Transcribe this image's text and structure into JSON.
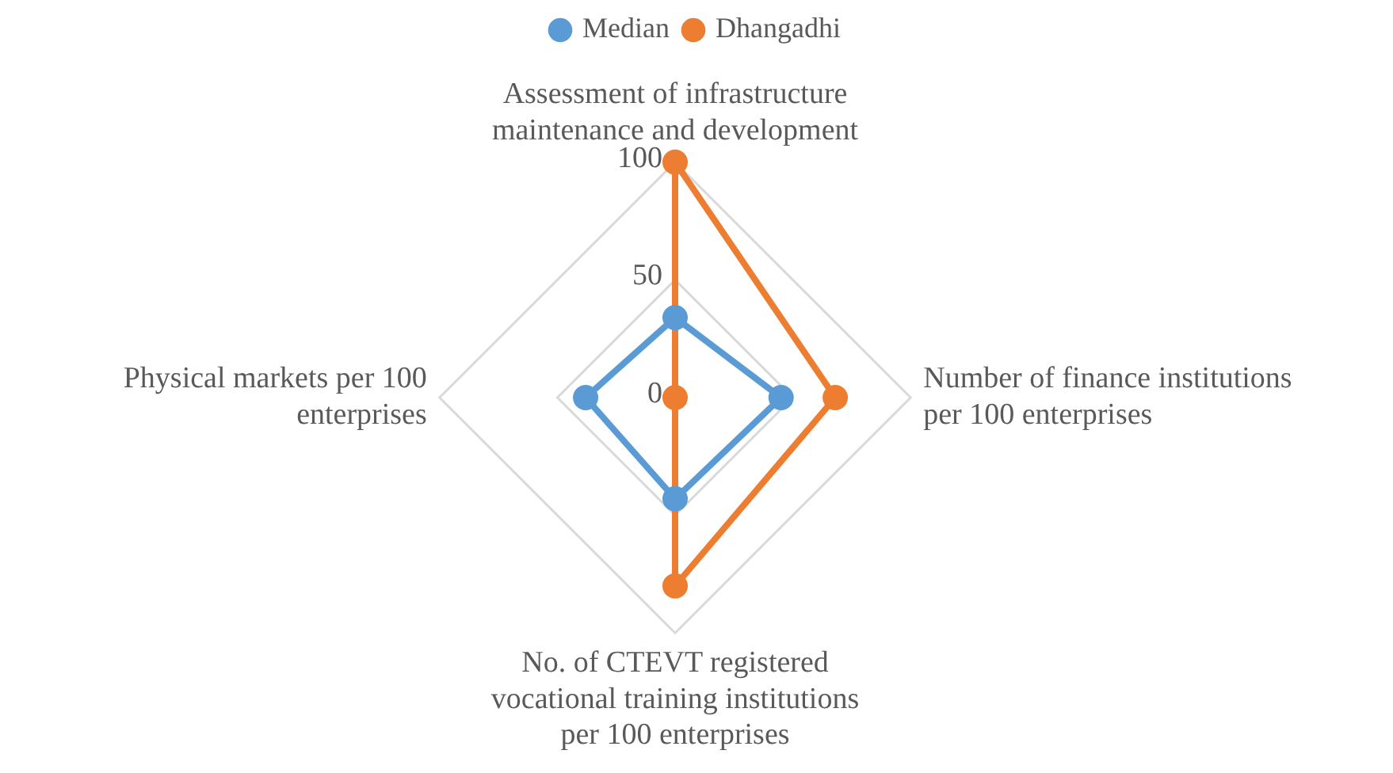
{
  "chart_data": {
    "type": "radar",
    "categories": [
      "Assessment of infrastructure maintenance and development",
      "Number of finance institutions per 100 enterprises",
      "No. of CTEVT registered vocational training institutions per 100 enterprises",
      "Physical markets per 100 enterprises"
    ],
    "series": [
      {
        "name": "Median",
        "color": "#5b9bd5",
        "values": [
          34,
          45,
          43,
          38
        ]
      },
      {
        "name": "Dhangadhi",
        "color": "#ed7d31",
        "values": [
          100,
          68,
          80,
          0
        ]
      }
    ],
    "ylim": [
      0,
      100
    ],
    "yticks": [
      0,
      50,
      100
    ],
    "legend": "top",
    "marker": "circle",
    "grid": true
  }
}
